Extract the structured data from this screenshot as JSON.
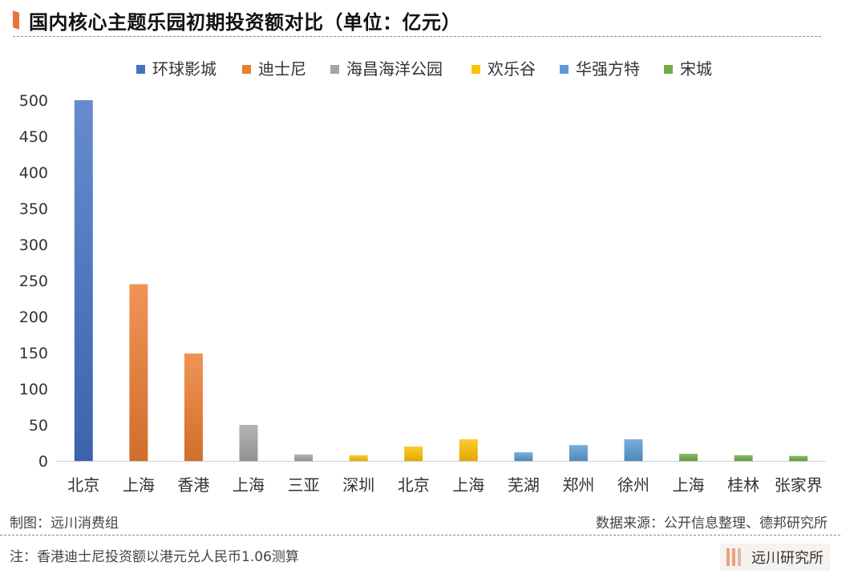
{
  "title": "国内核心主题乐园初期投资额对比（单位：亿元）",
  "credit_left": "制图：远川消费组",
  "credit_right": "数据来源：公开信息整理、德邦研究所",
  "note": "注：香港迪士尼投资额以港元兑人民币1.06测算",
  "brand": "远川研究所",
  "colors": {
    "accent": "#e8743b",
    "环球影城": "#4472c4",
    "迪士尼": "#ed7d31",
    "海昌海洋公园": "#a5a5a5",
    "欢乐谷": "#ffc000",
    "华强方特": "#5b9bd5",
    "宋城": "#70ad47"
  },
  "chart_data": {
    "type": "bar",
    "title": "国内核心主题乐园初期投资额对比（单位：亿元）",
    "xlabel": "",
    "ylabel": "",
    "ylim": [
      0,
      500
    ],
    "yticks": [
      0,
      50,
      100,
      150,
      200,
      250,
      300,
      350,
      400,
      450,
      500
    ],
    "grid": false,
    "legend": "top",
    "legend_entries": [
      "环球影城",
      "迪士尼",
      "海昌海洋公园",
      "欢乐谷",
      "华强方特",
      "宋城"
    ],
    "categories": [
      "北京",
      "上海",
      "香港",
      "上海",
      "三亚",
      "深圳",
      "北京",
      "上海",
      "芜湖",
      "郑州",
      "徐州",
      "上海",
      "桂林",
      "张家界"
    ],
    "groups": [
      "环球影城",
      "迪士尼",
      "迪士尼",
      "海昌海洋公园",
      "海昌海洋公园",
      "欢乐谷",
      "欢乐谷",
      "欢乐谷",
      "华强方特",
      "华强方特",
      "华强方特",
      "宋城",
      "宋城",
      "宋城"
    ],
    "values": [
      500,
      245,
      149,
      50,
      9,
      8,
      20,
      30,
      12,
      22,
      30,
      10,
      8,
      7
    ]
  }
}
